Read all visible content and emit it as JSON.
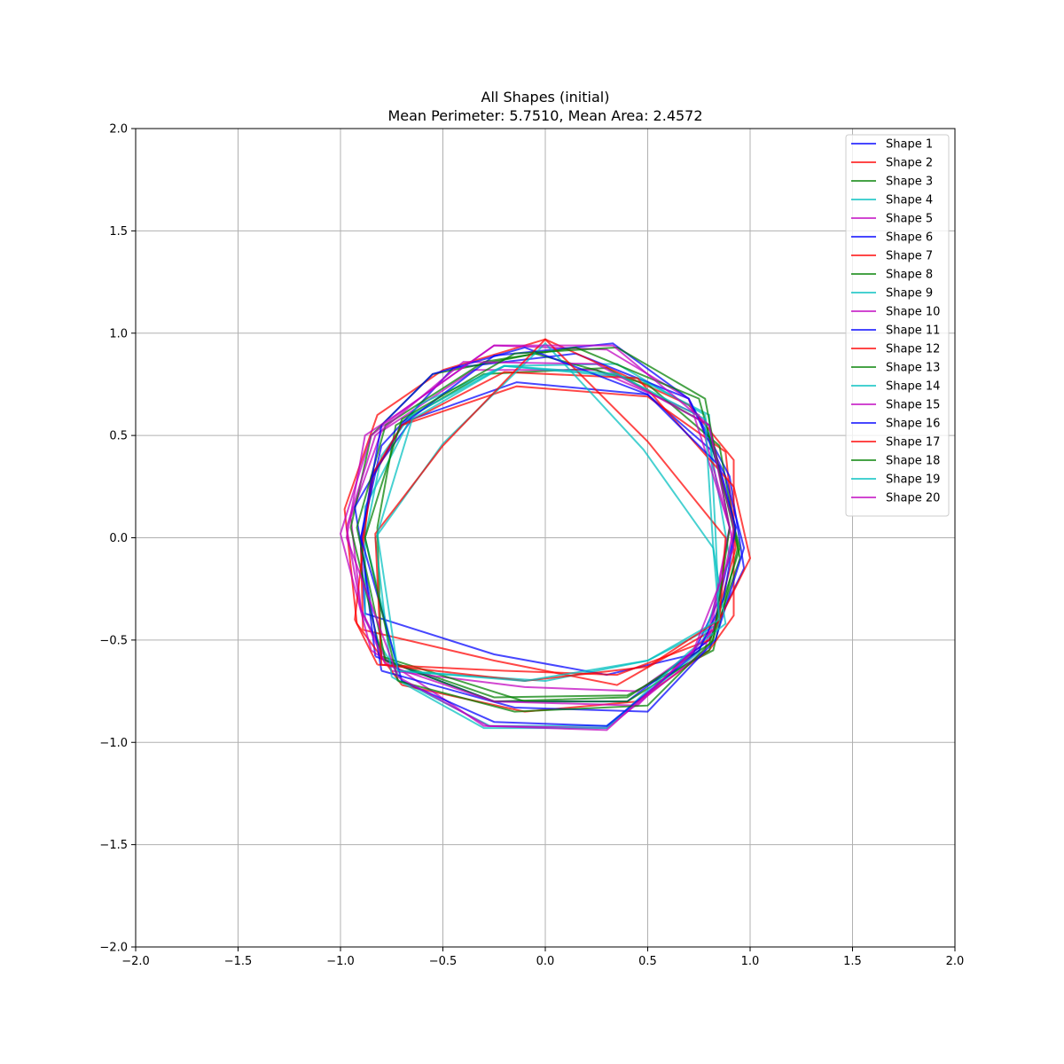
{
  "chart_data": {
    "type": "line",
    "title": "All Shapes (initial)",
    "subtitle": "Mean Perimeter: 5.7510, Mean Area: 2.4572",
    "xlim": [
      -2.0,
      2.0
    ],
    "ylim": [
      -2.0,
      2.0
    ],
    "xticks": [
      -2.0,
      -1.5,
      -1.0,
      -0.5,
      0.0,
      0.5,
      1.0,
      1.5,
      2.0
    ],
    "yticks": [
      -2.0,
      -1.5,
      -1.0,
      -0.5,
      0.0,
      0.5,
      1.0,
      1.5,
      2.0
    ],
    "xtick_labels": [
      "−2.0",
      "−1.5",
      "−1.0",
      "−0.5",
      "0.0",
      "0.5",
      "1.0",
      "1.5",
      "2.0"
    ],
    "ytick_labels": [
      "−2.0",
      "−1.5",
      "−1.0",
      "−0.5",
      "0.0",
      "0.5",
      "1.0",
      "1.5",
      "2.0"
    ],
    "grid": true,
    "legend_position": "top-right",
    "series": [
      {
        "name": "Shape 1",
        "color": "#0000ff",
        "points": [
          [
            -0.88,
            -0.37
          ],
          [
            -0.25,
            -0.57
          ],
          [
            0.3,
            -0.67
          ],
          [
            0.72,
            -0.57
          ],
          [
            0.85,
            -0.3
          ],
          [
            0.93,
            0.05
          ],
          [
            0.82,
            0.42
          ],
          [
            0.5,
            0.7
          ],
          [
            -0.14,
            0.76
          ],
          [
            -0.65,
            0.58
          ],
          [
            -0.84,
            0.32
          ],
          [
            -0.9,
            -0.05
          ],
          [
            -0.88,
            -0.37
          ]
        ]
      },
      {
        "name": "Shape 2",
        "color": "#ff0000",
        "points": [
          [
            -0.89,
            -0.45
          ],
          [
            -0.25,
            -0.6
          ],
          [
            0.35,
            -0.72
          ],
          [
            0.82,
            -0.45
          ],
          [
            0.93,
            -0.05
          ],
          [
            0.88,
            0.42
          ],
          [
            0.5,
            0.69
          ],
          [
            -0.14,
            0.74
          ],
          [
            -0.7,
            0.55
          ],
          [
            -0.84,
            0.3
          ],
          [
            -0.9,
            -0.05
          ],
          [
            -0.89,
            -0.45
          ]
        ]
      },
      {
        "name": "Shape 3",
        "color": "#008000",
        "points": [
          [
            -0.8,
            -0.59
          ],
          [
            -0.25,
            -0.78
          ],
          [
            0.4,
            -0.77
          ],
          [
            0.82,
            -0.55
          ],
          [
            0.94,
            -0.05
          ],
          [
            0.8,
            0.55
          ],
          [
            0.3,
            0.83
          ],
          [
            -0.3,
            0.8
          ],
          [
            -0.73,
            0.55
          ],
          [
            -0.82,
            0.05
          ],
          [
            -0.8,
            -0.59
          ]
        ]
      },
      {
        "name": "Shape 4",
        "color": "#00bfbf",
        "points": [
          [
            -0.7,
            -0.7
          ],
          [
            -0.27,
            -0.92
          ],
          [
            0.3,
            -0.92
          ],
          [
            0.75,
            -0.56
          ],
          [
            0.9,
            -0.1
          ],
          [
            0.78,
            0.6
          ],
          [
            0.35,
            0.85
          ],
          [
            -0.2,
            0.84
          ],
          [
            -0.65,
            0.6
          ],
          [
            -0.88,
            0.15
          ],
          [
            -0.88,
            -0.4
          ],
          [
            -0.7,
            -0.7
          ]
        ]
      },
      {
        "name": "Shape 5",
        "color": "#bf00bf",
        "points": [
          [
            -0.75,
            -0.65
          ],
          [
            -0.1,
            -0.73
          ],
          [
            0.45,
            -0.75
          ],
          [
            0.8,
            -0.5
          ],
          [
            0.9,
            0.05
          ],
          [
            0.75,
            0.6
          ],
          [
            0.25,
            0.82
          ],
          [
            -0.35,
            0.82
          ],
          [
            -0.8,
            0.52
          ],
          [
            -0.95,
            0.1
          ],
          [
            -0.9,
            -0.35
          ],
          [
            -0.75,
            -0.65
          ]
        ]
      },
      {
        "name": "Shape 6",
        "color": "#0000ff",
        "points": [
          [
            -0.83,
            -0.58
          ],
          [
            -0.25,
            -0.8
          ],
          [
            0.4,
            -0.8
          ],
          [
            0.8,
            -0.5
          ],
          [
            0.97,
            -0.15
          ],
          [
            0.9,
            0.3
          ],
          [
            0.7,
            0.68
          ],
          [
            0.15,
            0.9
          ],
          [
            -0.45,
            0.83
          ],
          [
            -0.8,
            0.45
          ],
          [
            -0.9,
            0.0
          ],
          [
            -0.83,
            -0.58
          ]
        ]
      },
      {
        "name": "Shape 7",
        "color": "#ff0000",
        "points": [
          [
            -0.7,
            -0.72
          ],
          [
            -0.1,
            -0.85
          ],
          [
            0.45,
            -0.8
          ],
          [
            0.8,
            -0.55
          ],
          [
            0.92,
            -0.38
          ],
          [
            0.92,
            0.38
          ],
          [
            0.7,
            0.65
          ],
          [
            0.0,
            0.97
          ],
          [
            -0.5,
            0.82
          ],
          [
            -0.82,
            0.6
          ],
          [
            -0.98,
            0.14
          ],
          [
            -0.92,
            -0.42
          ],
          [
            -0.7,
            -0.72
          ]
        ]
      },
      {
        "name": "Shape 8",
        "color": "#008000",
        "points": [
          [
            -0.8,
            -0.58
          ],
          [
            -0.1,
            -0.8
          ],
          [
            0.4,
            -0.8
          ],
          [
            0.8,
            -0.55
          ],
          [
            0.95,
            -0.1
          ],
          [
            0.85,
            0.45
          ],
          [
            0.5,
            0.75
          ],
          [
            -0.05,
            0.9
          ],
          [
            -0.55,
            0.8
          ],
          [
            -0.85,
            0.5
          ],
          [
            -0.95,
            0.05
          ],
          [
            -0.8,
            -0.58
          ]
        ]
      },
      {
        "name": "Shape 9",
        "color": "#00bfbf",
        "points": [
          [
            -0.72,
            -0.65
          ],
          [
            0.0,
            -0.7
          ],
          [
            0.5,
            -0.6
          ],
          [
            0.85,
            -0.42
          ],
          [
            0.83,
            0.05
          ],
          [
            0.8,
            0.6
          ],
          [
            0.45,
            0.78
          ],
          [
            -0.2,
            0.84
          ],
          [
            -0.62,
            0.65
          ],
          [
            -0.8,
            0.4
          ],
          [
            -0.88,
            0.0
          ],
          [
            -0.72,
            -0.65
          ]
        ]
      },
      {
        "name": "Shape 10",
        "color": "#bf00bf",
        "points": [
          [
            -0.85,
            -0.55
          ],
          [
            -0.3,
            -0.92
          ],
          [
            0.3,
            -0.93
          ],
          [
            0.78,
            -0.55
          ],
          [
            0.9,
            0.05
          ],
          [
            0.7,
            0.68
          ],
          [
            0.3,
            0.92
          ],
          [
            -0.25,
            0.94
          ],
          [
            -0.7,
            0.62
          ],
          [
            -0.85,
            0.5
          ],
          [
            -1.0,
            0.02
          ],
          [
            -0.85,
            -0.55
          ]
        ]
      },
      {
        "name": "Shape 11",
        "color": "#0000ff",
        "points": [
          [
            -0.8,
            -0.65
          ],
          [
            -0.15,
            -0.83
          ],
          [
            0.5,
            -0.85
          ],
          [
            0.83,
            -0.5
          ],
          [
            0.97,
            -0.05
          ],
          [
            0.88,
            0.3
          ],
          [
            0.7,
            0.68
          ],
          [
            0.33,
            0.95
          ],
          [
            -0.25,
            0.89
          ],
          [
            -0.7,
            0.55
          ],
          [
            -0.93,
            0.15
          ],
          [
            -0.8,
            -0.65
          ]
        ]
      },
      {
        "name": "Shape 12",
        "color": "#ff0000",
        "points": [
          [
            -0.82,
            -0.62
          ],
          [
            -0.2,
            -0.65
          ],
          [
            0.35,
            -0.67
          ],
          [
            0.8,
            -0.5
          ],
          [
            1.0,
            -0.1
          ],
          [
            0.92,
            0.25
          ],
          [
            0.45,
            0.78
          ],
          [
            -0.2,
            0.81
          ],
          [
            -0.7,
            0.55
          ],
          [
            -0.85,
            0.3
          ],
          [
            -0.93,
            -0.4
          ],
          [
            -0.82,
            -0.62
          ]
        ]
      },
      {
        "name": "Shape 13",
        "color": "#008000",
        "points": [
          [
            -0.78,
            -0.6
          ],
          [
            -0.25,
            -0.8
          ],
          [
            0.4,
            -0.78
          ],
          [
            0.8,
            -0.52
          ],
          [
            0.95,
            -0.05
          ],
          [
            0.75,
            0.68
          ],
          [
            0.15,
            0.93
          ],
          [
            -0.3,
            0.86
          ],
          [
            -0.78,
            0.55
          ],
          [
            -0.92,
            0.05
          ],
          [
            -0.78,
            -0.6
          ]
        ]
      },
      {
        "name": "Shape 14",
        "color": "#00bfbf",
        "points": [
          [
            -0.75,
            -0.68
          ],
          [
            -0.3,
            -0.93
          ],
          [
            0.3,
            -0.93
          ],
          [
            0.7,
            -0.56
          ],
          [
            0.88,
            -0.42
          ],
          [
            0.82,
            -0.05
          ],
          [
            0.48,
            0.43
          ],
          [
            0.0,
            0.95
          ],
          [
            -0.5,
            0.46
          ],
          [
            -0.83,
            0.0
          ],
          [
            -0.75,
            -0.68
          ]
        ]
      },
      {
        "name": "Shape 15",
        "color": "#bf00bf",
        "points": [
          [
            -0.78,
            -0.62
          ],
          [
            -0.25,
            -0.8
          ],
          [
            0.45,
            -0.82
          ],
          [
            0.82,
            -0.45
          ],
          [
            0.92,
            0.05
          ],
          [
            0.8,
            0.55
          ],
          [
            0.25,
            0.85
          ],
          [
            -0.4,
            0.86
          ],
          [
            -0.83,
            0.5
          ],
          [
            -0.97,
            0.05
          ],
          [
            -0.9,
            -0.35
          ],
          [
            -0.78,
            -0.62
          ]
        ]
      },
      {
        "name": "Shape 16",
        "color": "#0000ff",
        "points": [
          [
            -0.7,
            -0.7
          ],
          [
            -0.25,
            -0.9
          ],
          [
            0.3,
            -0.92
          ],
          [
            0.75,
            -0.55
          ],
          [
            0.87,
            -0.3
          ],
          [
            0.93,
            0.05
          ],
          [
            0.85,
            0.35
          ],
          [
            0.5,
            0.7
          ],
          [
            -0.1,
            0.93
          ],
          [
            -0.55,
            0.8
          ],
          [
            -0.8,
            0.55
          ],
          [
            -0.9,
            0.0
          ],
          [
            -0.7,
            -0.7
          ]
        ]
      },
      {
        "name": "Shape 17",
        "color": "#ff0000",
        "points": [
          [
            -0.8,
            -0.62
          ],
          [
            -0.1,
            -0.7
          ],
          [
            0.5,
            -0.63
          ],
          [
            0.85,
            -0.4
          ],
          [
            0.88,
            0.0
          ],
          [
            0.5,
            0.47
          ],
          [
            0.0,
            0.97
          ],
          [
            -0.5,
            0.45
          ],
          [
            -0.83,
            0.02
          ],
          [
            -0.8,
            -0.62
          ]
        ]
      },
      {
        "name": "Shape 18",
        "color": "#008000",
        "points": [
          [
            -0.72,
            -0.7
          ],
          [
            -0.15,
            -0.85
          ],
          [
            0.5,
            -0.82
          ],
          [
            0.82,
            -0.5
          ],
          [
            0.9,
            0.05
          ],
          [
            0.78,
            0.68
          ],
          [
            0.35,
            0.93
          ],
          [
            -0.15,
            0.9
          ],
          [
            -0.7,
            0.58
          ],
          [
            -0.88,
            0.0
          ],
          [
            -0.72,
            -0.7
          ]
        ]
      },
      {
        "name": "Shape 19",
        "color": "#00bfbf",
        "points": [
          [
            -0.72,
            -0.65
          ],
          [
            -0.1,
            -0.7
          ],
          [
            0.5,
            -0.6
          ],
          [
            0.85,
            -0.4
          ],
          [
            0.82,
            -0.05
          ],
          [
            0.78,
            0.58
          ],
          [
            0.35,
            0.8
          ],
          [
            -0.2,
            0.84
          ],
          [
            -0.65,
            0.58
          ],
          [
            -0.82,
            0.02
          ],
          [
            -0.72,
            -0.65
          ]
        ]
      },
      {
        "name": "Shape 20",
        "color": "#bf00bf",
        "points": [
          [
            -0.72,
            -0.68
          ],
          [
            -0.28,
            -0.92
          ],
          [
            0.3,
            -0.94
          ],
          [
            0.72,
            -0.56
          ],
          [
            0.92,
            -0.05
          ],
          [
            0.8,
            0.55
          ],
          [
            0.33,
            0.94
          ],
          [
            -0.25,
            0.94
          ],
          [
            -0.7,
            0.62
          ],
          [
            -0.88,
            0.5
          ],
          [
            -0.97,
            0.0
          ],
          [
            -0.72,
            -0.68
          ]
        ]
      }
    ]
  }
}
